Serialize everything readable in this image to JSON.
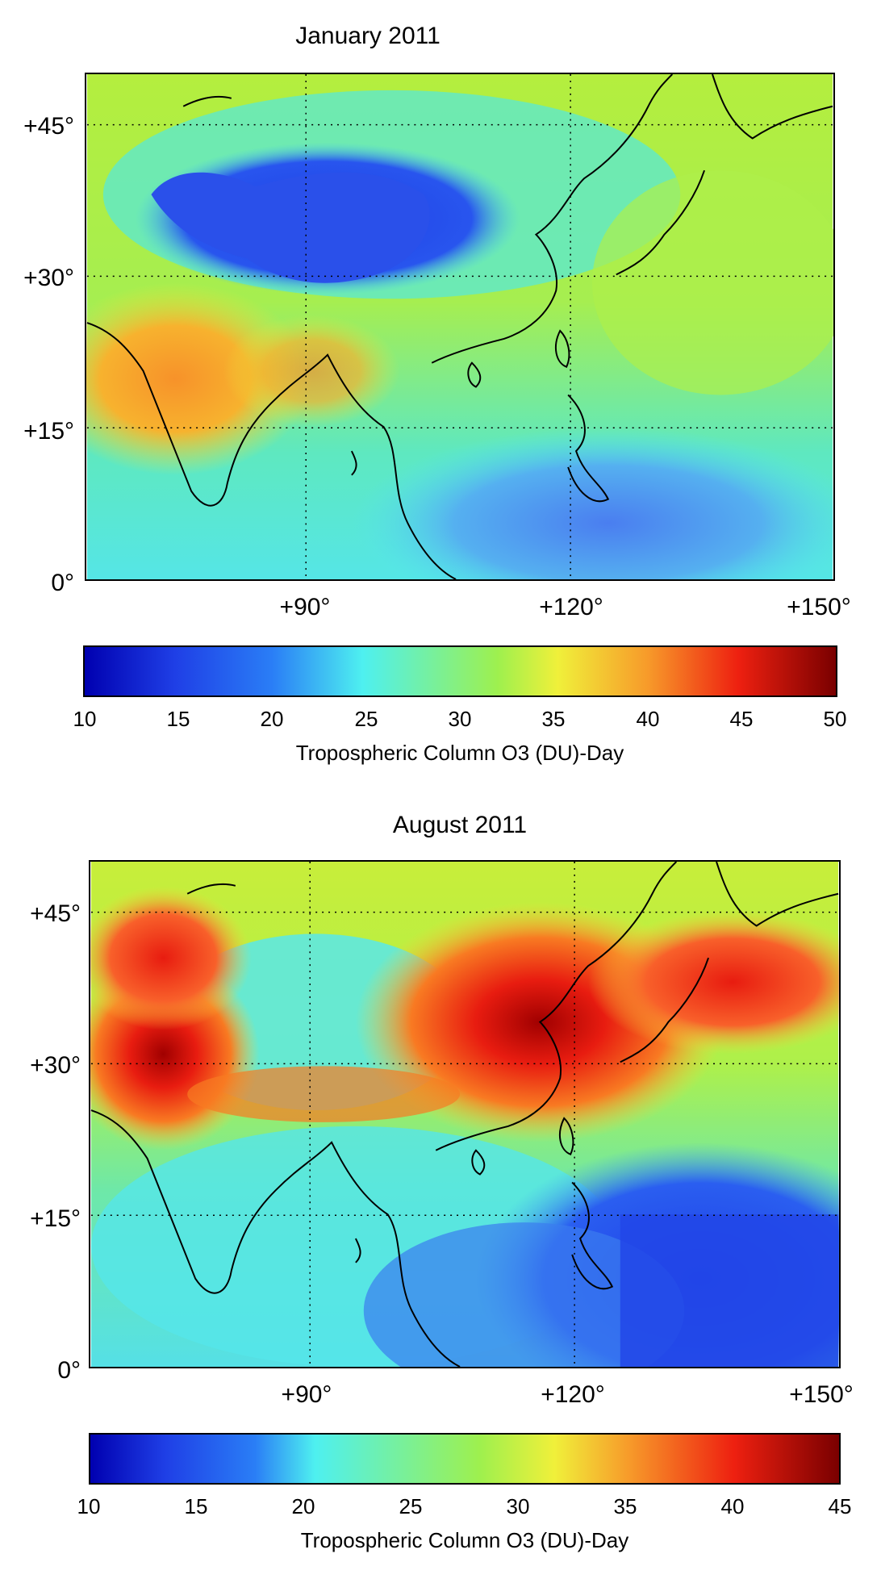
{
  "panels": [
    {
      "title": "January 2011",
      "lat_labels": [
        "+45°",
        "+30°",
        "+15°",
        "0°"
      ],
      "lon_labels": [
        "+90°",
        "+120°",
        "+150°"
      ],
      "colorbar": {
        "ticks": [
          "10",
          "15",
          "20",
          "25",
          "30",
          "35",
          "40",
          "45",
          "50"
        ],
        "label": "Tropospheric Column O3 (DU)-Day",
        "range": [
          10,
          50
        ]
      }
    },
    {
      "title": "August 2011",
      "lat_labels": [
        "+45°",
        "+30°",
        "+15°",
        "0°"
      ],
      "lon_labels": [
        "+90°",
        "+120°",
        "+150°"
      ],
      "colorbar": {
        "ticks": [
          "10",
          "15",
          "20",
          "25",
          "30",
          "35",
          "40",
          "45"
        ],
        "label": "Tropospheric Column O3 (DU)-Day",
        "range": [
          10,
          45
        ]
      }
    }
  ],
  "colors": {
    "jet_blue": "#1f3fe6",
    "jet_cyan": "#4ef0f0",
    "jet_green": "#9ef04e",
    "jet_yellow": "#f0f03a",
    "jet_orange": "#f79a2a",
    "jet_red": "#ee2010",
    "jet_dark_red": "#7a0000",
    "coastline": "#000000",
    "gridline": "#000000"
  }
}
